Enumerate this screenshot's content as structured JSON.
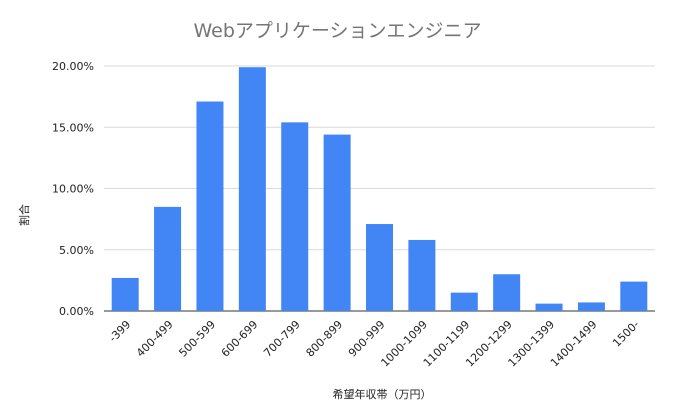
{
  "chart_data": {
    "type": "bar",
    "title": "Webアプリケーションエンジニア",
    "xlabel": "希望年収帯（万円）",
    "ylabel": "割合",
    "categories": [
      "-399",
      "400-499",
      "500-599",
      "600-699",
      "700-799",
      "800-899",
      "900-999",
      "1000-1099",
      "1100-1199",
      "1200-1299",
      "1300-1399",
      "1400-1499",
      "1500-"
    ],
    "values": [
      2.7,
      8.5,
      17.1,
      19.9,
      15.4,
      14.4,
      7.1,
      5.8,
      1.5,
      3.0,
      0.6,
      0.7,
      2.4
    ],
    "ylim": [
      0,
      20
    ],
    "yticks": [
      "0.00%",
      "5.00%",
      "10.00%",
      "15.00%",
      "20.00%"
    ],
    "grid": true,
    "legend": "none",
    "colors": {
      "bar": "#4285f4",
      "grid": "#d9d9d9",
      "title": "#757575",
      "text": "#222222"
    }
  }
}
